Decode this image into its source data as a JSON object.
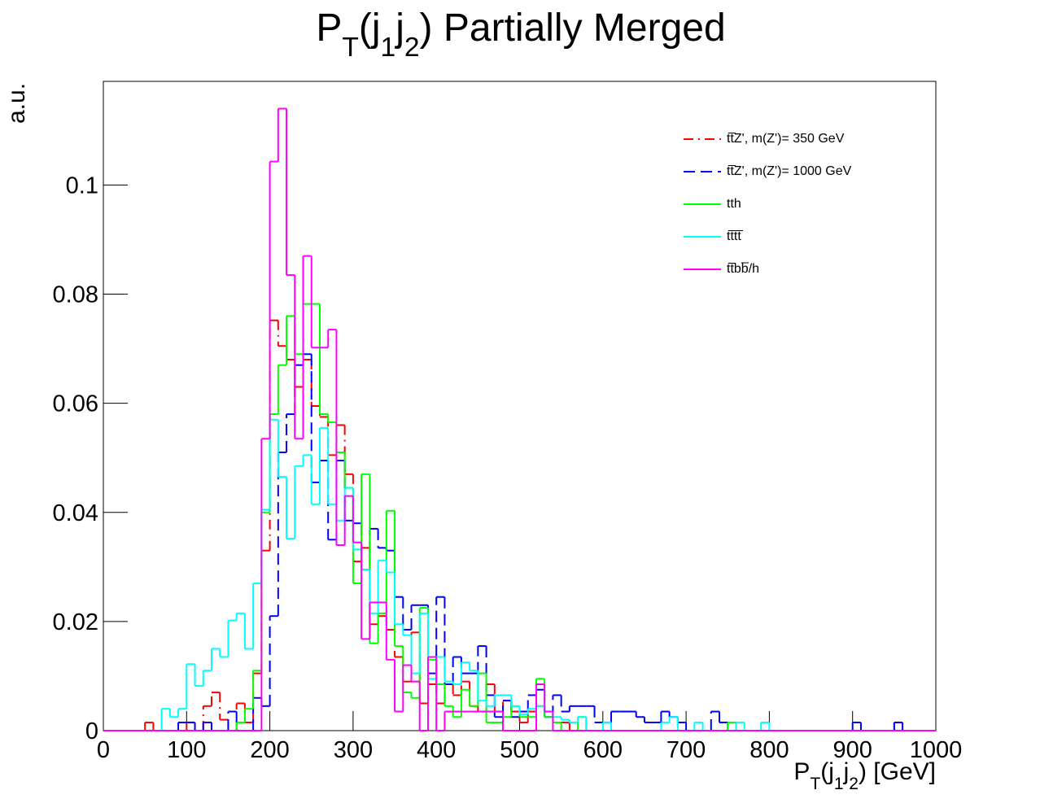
{
  "chart_data": {
    "type": "histogram",
    "title_parts": [
      {
        "text": "P"
      },
      {
        "text": "T",
        "sub": true
      },
      {
        "text": "(j"
      },
      {
        "text": "1",
        "sub": true
      },
      {
        "text": "j"
      },
      {
        "text": "2",
        "sub": true
      },
      {
        "text": ") Partially Merged"
      }
    ],
    "x_label_parts": [
      {
        "text": "P"
      },
      {
        "text": "T",
        "sub": true
      },
      {
        "text": "(j"
      },
      {
        "text": "1",
        "sub": true
      },
      {
        "text": "j"
      },
      {
        "text": "2",
        "sub": true
      },
      {
        "text": ") [GeV]"
      }
    ],
    "y_label": "a.u.",
    "bins": [
      0,
      10,
      20,
      30,
      40,
      50,
      60,
      70,
      80,
      90,
      100,
      110,
      120,
      130,
      140,
      150,
      160,
      170,
      180,
      190,
      200,
      210,
      220,
      230,
      240,
      250,
      260,
      270,
      280,
      290,
      300,
      310,
      320,
      330,
      340,
      350,
      360,
      370,
      380,
      390,
      400,
      410,
      420,
      430,
      440,
      450,
      460,
      470,
      480,
      490,
      500,
      510,
      520,
      530,
      540,
      550,
      560,
      570,
      580,
      590,
      600,
      610,
      620,
      630,
      640,
      650,
      660,
      670,
      680,
      690,
      700,
      710,
      720,
      730,
      740,
      750,
      760,
      770,
      780,
      790,
      800,
      810,
      820,
      830,
      840,
      850,
      860,
      870,
      880,
      890,
      900,
      910,
      920,
      930,
      940,
      950,
      960,
      970,
      980,
      990,
      1000
    ],
    "series": [
      {
        "name": "tt̅Z', m(Z')= 350 GeV",
        "color": "#ff0000",
        "dash": "12,6,2,6",
        "values": [
          0,
          0,
          0,
          0,
          0,
          0.0015,
          0,
          0,
          0,
          0,
          0.0015,
          0,
          0.0045,
          0.007,
          0.002,
          0,
          0.005,
          0.0015,
          0.0105,
          0.033,
          0.0752,
          0.0705,
          0.068,
          0.063,
          0.068,
          0.0595,
          0.0575,
          0.0505,
          0.056,
          0.047,
          0.031,
          0.0335,
          0.0195,
          0.021,
          0.0185,
          0.0135,
          0.009,
          0.018,
          0.005,
          0.0085,
          0.005,
          0.0085,
          0.0065,
          0.009,
          0.0045,
          0.0035,
          0.0085,
          0.0035,
          0.0055,
          0.0035,
          0.0015,
          0.0035,
          0.0045,
          0.0035,
          0.0015,
          0.0015,
          0,
          0,
          0,
          0,
          0,
          0,
          0,
          0,
          0,
          0,
          0,
          0,
          0,
          0,
          0,
          0,
          0,
          0,
          0,
          0,
          0,
          0,
          0,
          0,
          0,
          0,
          0,
          0,
          0,
          0,
          0,
          0,
          0,
          0,
          0,
          0,
          0,
          0,
          0,
          0.0015,
          0,
          0,
          0,
          0
        ]
      },
      {
        "name": "tt̅Z', m(Z')= 1000 GeV",
        "color": "#0000ff",
        "dash": "14,7",
        "values": [
          0,
          0,
          0,
          0,
          0,
          0,
          0,
          0,
          0,
          0.0015,
          0.0015,
          0,
          0.0015,
          0,
          0,
          0.0035,
          0,
          0,
          0.006,
          0.0045,
          0.021,
          0.051,
          0.058,
          0.067,
          0.069,
          0.0455,
          0.0495,
          0.035,
          0.0495,
          0.0385,
          0.038,
          0.0295,
          0.037,
          0.0335,
          0.033,
          0.0245,
          0.0185,
          0.023,
          0.023,
          0.0105,
          0.0245,
          0.0085,
          0.0135,
          0.0105,
          0.0105,
          0.0155,
          0.0065,
          0.0025,
          0.0055,
          0.0025,
          0.0035,
          0.0065,
          0.0075,
          0.0025,
          0.0065,
          0.0035,
          0.0045,
          0.0045,
          0.0045,
          0.0015,
          0.0015,
          0.0035,
          0.0035,
          0.0035,
          0.0025,
          0.0015,
          0.0015,
          0.0035,
          0.0025,
          0.0015,
          0,
          0,
          0,
          0.0035,
          0.0015,
          0,
          0,
          0,
          0,
          0,
          0,
          0,
          0,
          0,
          0,
          0,
          0,
          0,
          0,
          0,
          0.0015,
          0,
          0,
          0,
          0,
          0.0015,
          0,
          0,
          0,
          0
        ]
      },
      {
        "name": "tth",
        "color": "#00ff00",
        "dash": "",
        "values": [
          0,
          0,
          0,
          0,
          0,
          0,
          0,
          0,
          0,
          0,
          0,
          0,
          0,
          0,
          0,
          0,
          0.0015,
          0.004,
          0.011,
          0.04,
          0.058,
          0.067,
          0.076,
          0.069,
          0.0782,
          0.0782,
          0.058,
          0.0565,
          0.051,
          0.0445,
          0.027,
          0.047,
          0.016,
          0.0215,
          0.0403,
          0.0155,
          0.007,
          0.006,
          0.0225,
          0.013,
          0.0085,
          0.0045,
          0.0025,
          0.0075,
          0.0045,
          0.0105,
          0.0015,
          0.0015,
          0.0025,
          0.0045,
          0.0025,
          0.0025,
          0.0095,
          0.0025,
          0.0015,
          0,
          0,
          0.0025,
          0,
          0,
          0,
          0,
          0,
          0,
          0,
          0,
          0,
          0,
          0,
          0,
          0,
          0,
          0,
          0,
          0,
          0.0015,
          0,
          0,
          0,
          0,
          0,
          0,
          0,
          0,
          0,
          0,
          0,
          0,
          0,
          0,
          0,
          0,
          0,
          0,
          0,
          0,
          0,
          0,
          0,
          0
        ]
      },
      {
        "name": "tt̅tt̅",
        "color": "#00ffff",
        "dash": "",
        "values": [
          0,
          0,
          0,
          0,
          0,
          0,
          0,
          0.004,
          0.0025,
          0.004,
          0.0122,
          0.0082,
          0.011,
          0.015,
          0.0135,
          0.0202,
          0.0215,
          0.015,
          0.027,
          0.0405,
          0.057,
          0.0465,
          0.0352,
          0.0485,
          0.0505,
          0.0415,
          0.0555,
          0.0415,
          0.0385,
          0.0445,
          0.0332,
          0.0295,
          0.0215,
          0.0312,
          0.029,
          0.0195,
          0.0175,
          0.0105,
          0.0215,
          0.0095,
          0.0135,
          0.009,
          0.0085,
          0.0125,
          0.011,
          0.0055,
          0.0045,
          0.0065,
          0.0065,
          0.0045,
          0.003,
          0.004,
          0.0045,
          0.0035,
          0.0025,
          0.002,
          0.0015,
          0.0025,
          0,
          0,
          0.0015,
          0,
          0,
          0,
          0,
          0,
          0,
          0.0015,
          0.0025,
          0,
          0,
          0.0015,
          0,
          0,
          0,
          0,
          0.0015,
          0,
          0,
          0.0015,
          0,
          0,
          0,
          0,
          0,
          0,
          0,
          0,
          0,
          0,
          0,
          0,
          0,
          0,
          0,
          0,
          0,
          0,
          0,
          0
        ]
      },
      {
        "name": "tt̅bb̅/h",
        "color": "#ff00ff",
        "dash": "",
        "values": [
          0,
          0,
          0,
          0,
          0,
          0,
          0,
          0,
          0,
          0,
          0,
          0,
          0,
          0,
          0,
          0,
          0,
          0,
          0,
          0.0535,
          0.1043,
          0.114,
          0.0835,
          0.0535,
          0.087,
          0.0702,
          0.0702,
          0.0735,
          0.034,
          0.043,
          0.0345,
          0.0168,
          0.0235,
          0.0235,
          0.013,
          0.0035,
          0.012,
          0.009,
          0,
          0.0135,
          0,
          0.0035,
          0.0035,
          0.0035,
          0.0035,
          0.0035,
          0.0035,
          0.0035,
          0,
          0,
          0,
          0,
          0.0085,
          0.0035,
          0,
          0,
          0,
          0,
          0,
          0,
          0,
          0,
          0,
          0,
          0,
          0,
          0,
          0,
          0,
          0,
          0,
          0,
          0,
          0,
          0,
          0,
          0,
          0,
          0,
          0,
          0,
          0,
          0,
          0,
          0,
          0,
          0,
          0,
          0,
          0,
          0,
          0,
          0,
          0,
          0,
          0,
          0,
          0,
          0,
          0
        ]
      }
    ],
    "xlim": [
      0,
      1000
    ],
    "xticks": [
      0,
      100,
      200,
      300,
      400,
      500,
      600,
      700,
      800,
      900,
      1000
    ],
    "ylim": [
      0,
      0.119
    ],
    "yticks": [
      0,
      0.02,
      0.04,
      0.06,
      0.08,
      0.1
    ],
    "legend": "top-right"
  }
}
